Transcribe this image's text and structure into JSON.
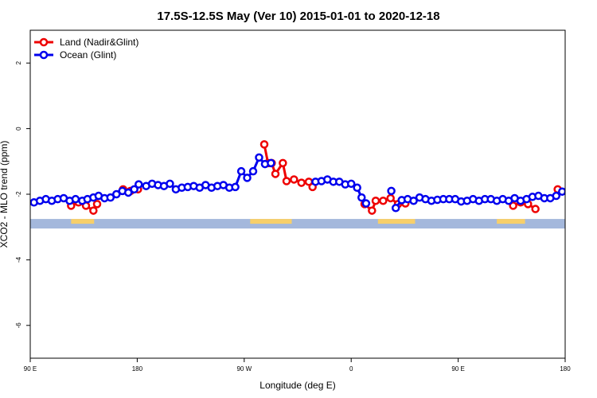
{
  "chart_data": {
    "type": "line",
    "title": "17.5S-12.5S May (Ver 10)   2015-01-01 to 2020-12-18",
    "xlabel": "Longitude (deg E)",
    "ylabel": "XCO2 - MLO trend (ppm)",
    "xlim": [
      90,
      450
    ],
    "ylim": [
      -7,
      3
    ],
    "x_ticks": [
      {
        "value": 90,
        "label": "90 E"
      },
      {
        "value": 162,
        "label": "180"
      },
      {
        "value": 234,
        "label": "90 W"
      },
      {
        "value": 306,
        "label": "0"
      },
      {
        "value": 378,
        "label": "90 E"
      },
      {
        "value": 450,
        "label": "180"
      }
    ],
    "y_ticks": [
      {
        "value": 2,
        "label": "2"
      },
      {
        "value": 0,
        "label": "0"
      },
      {
        "value": -2,
        "label": "-2"
      },
      {
        "value": -4,
        "label": "-4"
      },
      {
        "value": -6,
        "label": "-6"
      }
    ],
    "legend": {
      "position": "top-left"
    },
    "grid": false,
    "series": [
      {
        "name": "Land (Nadir&Glint)",
        "color": "#ee0000",
        "segments": [
          [
            [
              117.5,
              -2.35
            ],
            [
              122.5,
              -2.25
            ],
            [
              127.5,
              -2.35
            ],
            [
              132.5,
              -2.5
            ],
            [
              135,
              -2.3
            ]
          ],
          [
            [
              152.5,
              -1.85
            ],
            [
              157.5,
              -1.9
            ],
            [
              162.5,
              -1.85
            ]
          ],
          [
            [
              247.5,
              -0.48
            ],
            [
              250,
              -1.05
            ],
            [
              252.5,
              -1.05
            ],
            [
              255,
              -1.38
            ],
            [
              260,
              -1.05
            ],
            [
              262.5,
              -1.6
            ],
            [
              267.5,
              -1.55
            ],
            [
              272.5,
              -1.65
            ],
            [
              277.5,
              -1.62
            ],
            [
              280,
              -1.78
            ]
          ],
          [
            [
              315,
              -2.3
            ],
            [
              320,
              -2.5
            ],
            [
              322.5,
              -2.2
            ],
            [
              327.5,
              -2.2
            ],
            [
              332.5,
              -2.12
            ],
            [
              337.5,
              -2.3
            ],
            [
              342.5,
              -2.28
            ]
          ],
          [
            [
              415,
              -2.35
            ],
            [
              420,
              -2.25
            ],
            [
              425,
              -2.3
            ],
            [
              430,
              -2.45
            ]
          ],
          [
            [
              445,
              -1.85
            ]
          ]
        ]
      },
      {
        "name": "Ocean (Glint)",
        "color": "#0000ee",
        "segments": [
          [
            [
              92.5,
              -2.25
            ],
            [
              96.5,
              -2.2
            ],
            [
              100.5,
              -2.15
            ],
            [
              104.5,
              -2.2
            ],
            [
              108.5,
              -2.15
            ],
            [
              112.5,
              -2.12
            ],
            [
              116.5,
              -2.2
            ],
            [
              120.5,
              -2.15
            ],
            [
              125,
              -2.2
            ],
            [
              128.5,
              -2.15
            ],
            [
              132.5,
              -2.1
            ],
            [
              136,
              -2.05
            ],
            [
              140,
              -2.12
            ],
            [
              144,
              -2.1
            ],
            [
              148,
              -2.0
            ],
            [
              152,
              -1.9
            ],
            [
              156,
              -1.95
            ],
            [
              160,
              -1.85
            ],
            [
              163,
              -1.7
            ],
            [
              168,
              -1.75
            ],
            [
              172,
              -1.68
            ],
            [
              176,
              -1.72
            ],
            [
              180,
              -1.75
            ],
            [
              184,
              -1.68
            ],
            [
              188,
              -1.85
            ],
            [
              192,
              -1.8
            ],
            [
              196,
              -1.78
            ],
            [
              200,
              -1.75
            ],
            [
              204,
              -1.8
            ],
            [
              208,
              -1.72
            ],
            [
              212,
              -1.8
            ],
            [
              216,
              -1.75
            ],
            [
              220,
              -1.72
            ],
            [
              224,
              -1.8
            ],
            [
              228,
              -1.78
            ],
            [
              232,
              -1.3
            ],
            [
              236,
              -1.5
            ],
            [
              240,
              -1.3
            ],
            [
              244,
              -0.88
            ],
            [
              248,
              -1.08
            ],
            [
              252,
              -1.05
            ]
          ],
          [
            [
              282,
              -1.62
            ],
            [
              286,
              -1.6
            ],
            [
              290,
              -1.55
            ],
            [
              294,
              -1.62
            ],
            [
              298,
              -1.62
            ],
            [
              302,
              -1.7
            ],
            [
              306,
              -1.68
            ],
            [
              310,
              -1.8
            ],
            [
              313,
              -2.1
            ],
            [
              316,
              -2.28
            ]
          ],
          [
            [
              333,
              -1.9
            ]
          ],
          [
            [
              336,
              -2.42
            ],
            [
              340,
              -2.18
            ],
            [
              344,
              -2.15
            ],
            [
              348,
              -2.2
            ],
            [
              352,
              -2.1
            ],
            [
              356,
              -2.15
            ],
            [
              360,
              -2.2
            ],
            [
              364,
              -2.17
            ],
            [
              368,
              -2.15
            ],
            [
              372,
              -2.15
            ],
            [
              376,
              -2.15
            ],
            [
              380,
              -2.22
            ],
            [
              384,
              -2.2
            ],
            [
              388,
              -2.15
            ],
            [
              392,
              -2.2
            ],
            [
              396,
              -2.15
            ],
            [
              400,
              -2.15
            ],
            [
              404,
              -2.2
            ],
            [
              408,
              -2.15
            ],
            [
              412,
              -2.2
            ],
            [
              416,
              -2.12
            ],
            [
              420,
              -2.2
            ],
            [
              424,
              -2.15
            ],
            [
              428,
              -2.08
            ],
            [
              432,
              -2.05
            ],
            [
              436,
              -2.12
            ],
            [
              440,
              -2.12
            ],
            [
              444,
              -2.05
            ],
            [
              448,
              -1.92
            ],
            [
              452,
              -1.95
            ],
            [
              456,
              -1.88
            ]
          ]
        ]
      }
    ],
    "land_mask": {
      "band_y": -2.9,
      "ocean_color": "#a4b8dc",
      "land_color": "#f7cf6a",
      "land_ranges": [
        [
          117.5,
          133
        ],
        [
          238,
          266
        ],
        [
          324,
          349
        ],
        [
          404,
          423
        ]
      ]
    }
  }
}
